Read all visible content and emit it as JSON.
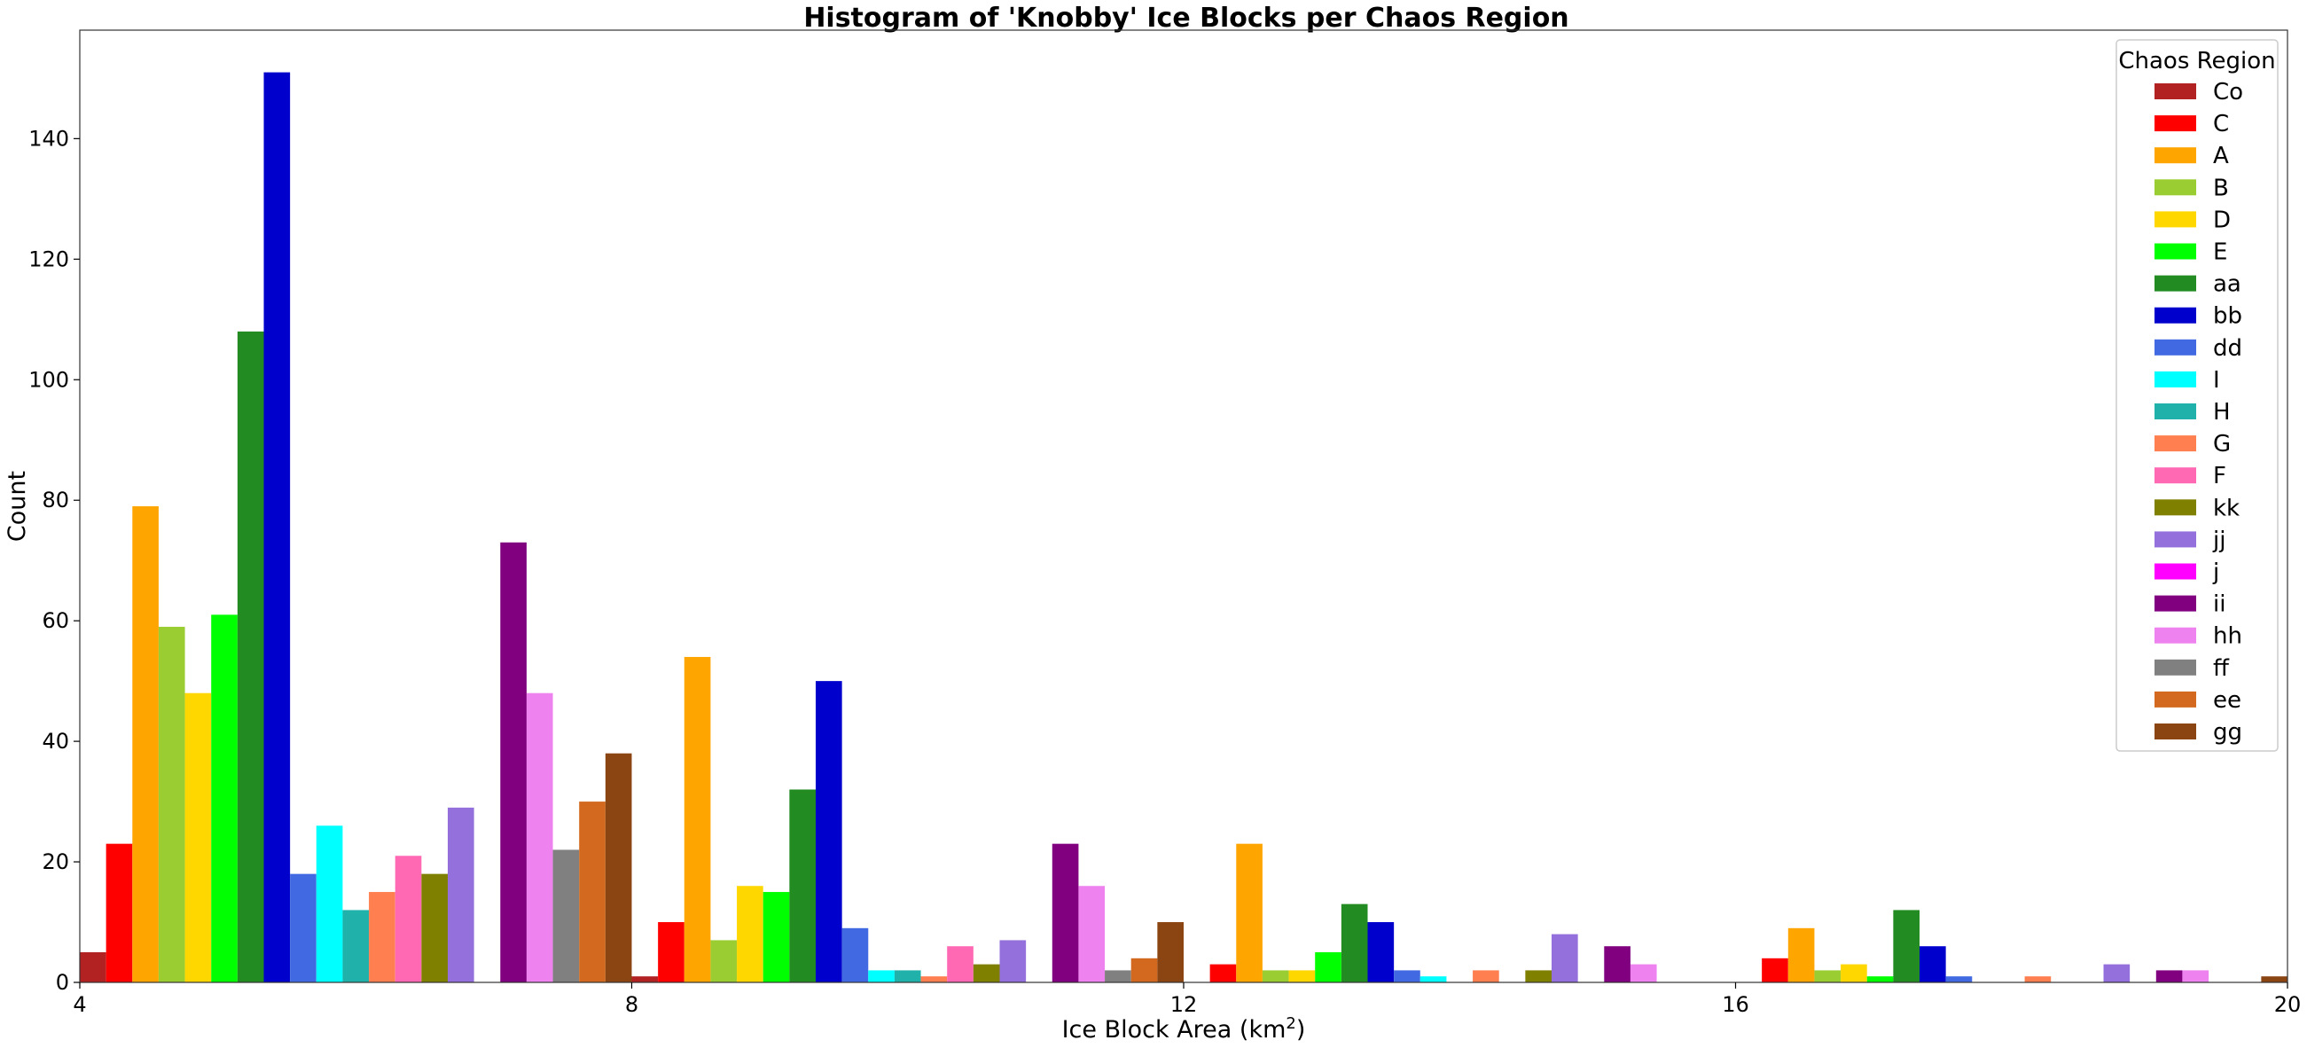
{
  "chart_data": {
    "type": "bar",
    "title": "Histogram of 'Knobby' Ice Blocks per Chaos Region",
    "xlabel": "Ice Block Area (km",
    "xlabel_sup": "2",
    "xlabel_suffix": ")",
    "ylabel": "Count",
    "xlim": [
      4,
      20
    ],
    "ylim": [
      0,
      158
    ],
    "xticks": [
      4,
      8,
      12,
      16,
      20
    ],
    "yticks": [
      0,
      20,
      40,
      60,
      80,
      100,
      120,
      140
    ],
    "grid": false,
    "legend": {
      "title": "Chaos Region",
      "position": "top-right"
    },
    "bins": [
      [
        4.0,
        8.0
      ],
      [
        8.0,
        12.0
      ],
      [
        12.0,
        16.0
      ],
      [
        16.0,
        20.0
      ]
    ],
    "series": [
      {
        "name": "Co",
        "color": "#b22222",
        "values": [
          5,
          1,
          0,
          0
        ]
      },
      {
        "name": "C",
        "color": "#ff0000",
        "values": [
          23,
          10,
          3,
          4
        ]
      },
      {
        "name": "A",
        "color": "#ffa500",
        "values": [
          79,
          54,
          23,
          9
        ]
      },
      {
        "name": "B",
        "color": "#9acd32",
        "values": [
          59,
          7,
          2,
          2
        ]
      },
      {
        "name": "D",
        "color": "#ffd700",
        "values": [
          48,
          16,
          2,
          3
        ]
      },
      {
        "name": "E",
        "color": "#00ff00",
        "values": [
          61,
          15,
          5,
          1
        ]
      },
      {
        "name": "aa",
        "color": "#228b22",
        "values": [
          108,
          32,
          13,
          12
        ]
      },
      {
        "name": "bb",
        "color": "#0000cd",
        "values": [
          151,
          50,
          10,
          6
        ]
      },
      {
        "name": "dd",
        "color": "#4169e1",
        "values": [
          18,
          9,
          2,
          1
        ]
      },
      {
        "name": "I",
        "color": "#00ffff",
        "values": [
          26,
          2,
          1,
          0
        ]
      },
      {
        "name": "H",
        "color": "#20b2aa",
        "values": [
          12,
          2,
          0,
          0
        ]
      },
      {
        "name": "G",
        "color": "#ff7f50",
        "values": [
          15,
          1,
          2,
          1
        ]
      },
      {
        "name": "F",
        "color": "#ff69b4",
        "values": [
          21,
          6,
          0,
          0
        ]
      },
      {
        "name": "kk",
        "color": "#808000",
        "values": [
          18,
          3,
          2,
          0
        ]
      },
      {
        "name": "jj",
        "color": "#9370db",
        "values": [
          29,
          7,
          8,
          3
        ]
      },
      {
        "name": "j",
        "color": "#ff00ff",
        "values": [
          0,
          0,
          0,
          0
        ]
      },
      {
        "name": "ii",
        "color": "#800080",
        "values": [
          73,
          23,
          6,
          2
        ]
      },
      {
        "name": "hh",
        "color": "#ee82ee",
        "values": [
          48,
          16,
          3,
          2
        ]
      },
      {
        "name": "ff",
        "color": "#808080",
        "values": [
          22,
          2,
          0,
          0
        ]
      },
      {
        "name": "ee",
        "color": "#d2691e",
        "values": [
          30,
          4,
          0,
          0
        ]
      },
      {
        "name": "gg",
        "color": "#8b4513",
        "values": [
          38,
          10,
          0,
          1
        ]
      }
    ]
  }
}
